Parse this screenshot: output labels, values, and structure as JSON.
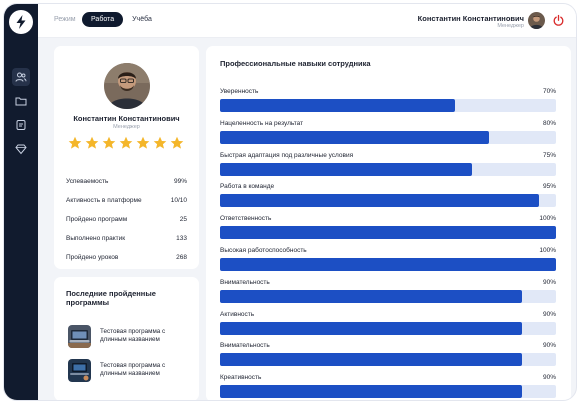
{
  "header": {
    "mode_label": "Режим",
    "modes": [
      {
        "label": "Работа",
        "active": true
      },
      {
        "label": "Учёба",
        "active": false
      }
    ],
    "user_name": "Константин Константинович",
    "user_role": "Менеджер"
  },
  "sidebar": {
    "items": [
      {
        "icon": "users-icon",
        "active": true
      },
      {
        "icon": "folder-icon",
        "active": false
      },
      {
        "icon": "document-icon",
        "active": false
      },
      {
        "icon": "diamond-icon",
        "active": false
      }
    ]
  },
  "profile": {
    "name": "Константин Константинович",
    "role": "Менеджер",
    "rating": 7,
    "stats": [
      {
        "label": "Успеваемость",
        "value": "99%"
      },
      {
        "label": "Активность в платформе",
        "value": "10/10"
      },
      {
        "label": "Пройдено программ",
        "value": "25"
      },
      {
        "label": "Выполнено практик",
        "value": "133"
      },
      {
        "label": "Пройдено уроков",
        "value": "268"
      }
    ]
  },
  "programs": {
    "title": "Последние пройденные программы",
    "items": [
      {
        "title": "Тестовая программа с длинным названием"
      },
      {
        "title": "Тестовая программа с длинным названием"
      }
    ]
  },
  "skills": {
    "title": "Профессиональные навыки сотрудника",
    "items": [
      {
        "label": "Уверенность",
        "percent": 70,
        "value": "70%"
      },
      {
        "label": "Нацеленность на результат",
        "percent": 80,
        "value": "80%"
      },
      {
        "label": "Быстрая адаптация под различные условия",
        "percent": 75,
        "value": "75%"
      },
      {
        "label": "Работа в команде",
        "percent": 95,
        "value": "95%"
      },
      {
        "label": "Ответственность",
        "percent": 100,
        "value": "100%"
      },
      {
        "label": "Высокая работоспособность",
        "percent": 100,
        "value": "100%"
      },
      {
        "label": "Внимательность",
        "percent": 90,
        "value": "90%"
      },
      {
        "label": "Активность",
        "percent": 90,
        "value": "90%"
      },
      {
        "label": "Внимательность",
        "percent": 90,
        "value": "90%"
      },
      {
        "label": "Креативность",
        "percent": 90,
        "value": "90%"
      }
    ]
  },
  "colors": {
    "sidebar": "#111b2e",
    "accent_bar": "#1c4fc4",
    "bar_track": "#e1e8f7",
    "star": "#f4b62a",
    "power_icon": "#d92b2b"
  }
}
